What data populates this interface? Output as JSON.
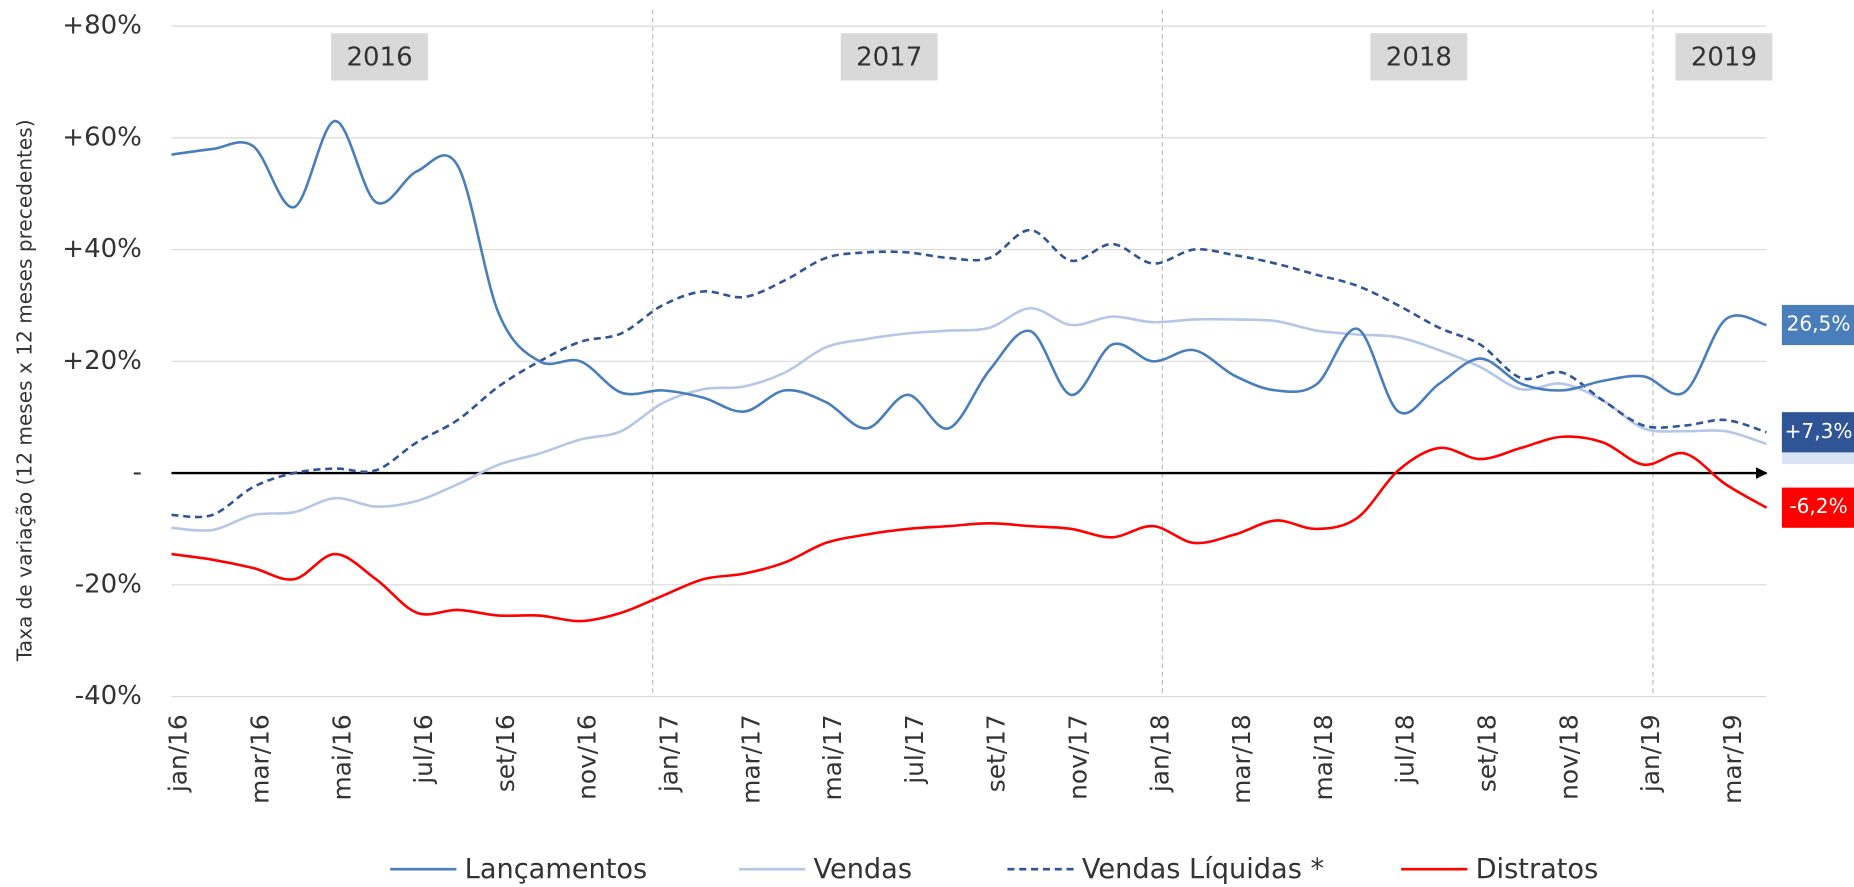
{
  "chart_data": {
    "type": "line",
    "y_axis_label": "Taxa de variação (12 meses x 12 meses precedentes)",
    "annotations": [
      "2016",
      "2017",
      "2018",
      "2019"
    ],
    "categories": [
      "jan/16",
      null,
      "mar/16",
      null,
      "mai/16",
      null,
      "jul/16",
      null,
      "set/16",
      null,
      "nov/16",
      null,
      "jan/17",
      null,
      "mar/17",
      null,
      "mai/17",
      null,
      "jul/17",
      null,
      "set/17",
      null,
      "nov/17",
      null,
      "jan/18",
      null,
      "mar/18",
      null,
      "mai/18",
      null,
      "jul/18",
      null,
      "set/18",
      null,
      "nov/18",
      null,
      "jan/19",
      null,
      "mar/19",
      null
    ],
    "ylim": [
      -40,
      80
    ],
    "yticks": [
      {
        "value": -40,
        "label": "-40%"
      },
      {
        "value": -20,
        "label": "-20%"
      },
      {
        "value": 0,
        "label": "-"
      },
      {
        "value": 20,
        "label": "+20%"
      },
      {
        "value": 40,
        "label": "+40%"
      },
      {
        "value": 60,
        "label": "+60%"
      },
      {
        "value": 80,
        "label": "+80%"
      }
    ],
    "grid": true,
    "legend": "bottom",
    "series": [
      {
        "name": "Lançamentos",
        "color": "#4a7ebb",
        "dash": false,
        "values": [
          57,
          58,
          58.5,
          47.6,
          63,
          48.5,
          54,
          55,
          28.6,
          20,
          20,
          14.4,
          14.8,
          13.5,
          11,
          14.8,
          12.7,
          8,
          14,
          8,
          18.4,
          25.4,
          14,
          23,
          20,
          22,
          17.4,
          14.8,
          15.9,
          25.8,
          11,
          16,
          20.5,
          16,
          14.8,
          16.5,
          17.3,
          14.5,
          27.5,
          26.5
        ],
        "value_labels": [
          null,
          null,
          null,
          null,
          null,
          null,
          null,
          null,
          null,
          null,
          null,
          null,
          null,
          null,
          null,
          null,
          null,
          null,
          null,
          null,
          null,
          null,
          null,
          null,
          null,
          null,
          null,
          null,
          null,
          null,
          null,
          null,
          null,
          null,
          null,
          null,
          null,
          null,
          null,
          "26,5%"
        ]
      },
      {
        "name": "Vendas",
        "color": "#b4c7e7",
        "dash": false,
        "values": [
          -9.8,
          -10.2,
          -7.5,
          -7,
          -4.5,
          -6,
          -5,
          -2,
          1.5,
          3.5,
          6,
          7.5,
          12.5,
          15,
          15.5,
          18,
          22.5,
          24,
          25,
          25.5,
          26,
          29.5,
          26.5,
          28,
          27,
          27.5,
          27.5,
          27.2,
          25.5,
          24.8,
          24.3,
          22,
          19,
          15,
          16,
          13,
          8,
          7.5,
          7.5,
          5.2
        ],
        "value_labels": [
          null,
          null,
          null,
          null,
          null,
          null,
          null,
          null,
          null,
          null,
          null,
          null,
          null,
          null,
          null,
          null,
          null,
          null,
          null,
          null,
          null,
          null,
          null,
          null,
          null,
          null,
          null,
          null,
          null,
          null,
          null,
          null,
          null,
          null,
          null,
          null,
          null,
          null,
          null,
          "+5,2%"
        ]
      },
      {
        "name": "Vendas Líquidas *",
        "color": "#2f5597",
        "dash": true,
        "values": [
          -7.5,
          -7.5,
          -2.5,
          0,
          0.8,
          0.5,
          5.5,
          9.5,
          15.5,
          20,
          23.5,
          25,
          30,
          32.5,
          31.5,
          34.5,
          38.5,
          39.5,
          39.5,
          38.5,
          38.5,
          43.5,
          38,
          41,
          37.5,
          40,
          39,
          37.5,
          35.5,
          33.5,
          30,
          26,
          23,
          17,
          18,
          13,
          8.5,
          8.5,
          9.5,
          7.3
        ],
        "value_labels": [
          null,
          null,
          null,
          null,
          null,
          null,
          null,
          null,
          null,
          null,
          null,
          null,
          null,
          null,
          null,
          null,
          null,
          null,
          null,
          null,
          null,
          null,
          null,
          null,
          null,
          null,
          null,
          null,
          null,
          null,
          null,
          null,
          null,
          null,
          null,
          null,
          null,
          null,
          null,
          "+7,3%"
        ]
      },
      {
        "name": "Distratos",
        "color": "#ff0000",
        "dash": false,
        "values": [
          -14.5,
          -15.5,
          -17,
          -19,
          -14.5,
          -19,
          -25,
          -24.5,
          -25.5,
          -25.5,
          -26.5,
          -25,
          -22,
          -19,
          -18,
          -16,
          -12.5,
          -11,
          -10,
          -9.5,
          -9,
          -9.5,
          -10,
          -11.5,
          -9.5,
          -12.5,
          -11,
          -8.5,
          -10,
          -8,
          0.5,
          4.5,
          2.5,
          4.5,
          6.5,
          5.5,
          1.5,
          3.5,
          -2,
          -6.2
        ],
        "value_labels": [
          null,
          null,
          null,
          null,
          null,
          null,
          null,
          null,
          null,
          null,
          null,
          null,
          null,
          null,
          null,
          null,
          null,
          null,
          null,
          null,
          null,
          null,
          null,
          null,
          null,
          null,
          null,
          null,
          null,
          null,
          null,
          null,
          null,
          null,
          null,
          null,
          null,
          null,
          null,
          "-6,2%"
        ]
      }
    ]
  }
}
